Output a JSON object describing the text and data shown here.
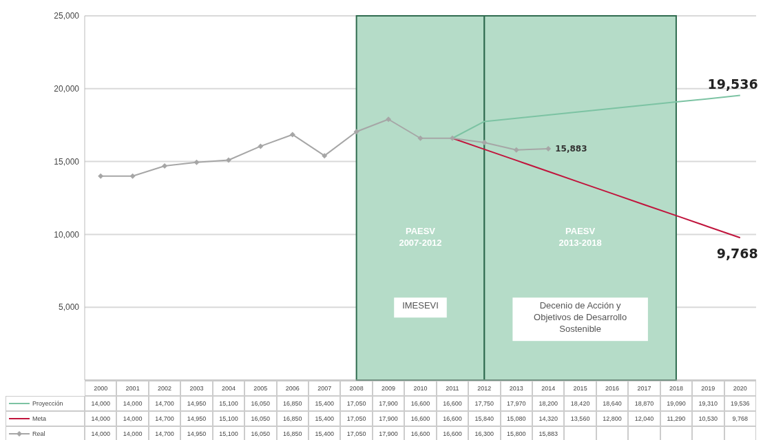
{
  "chart_data": {
    "type": "line",
    "categories": [
      "2000",
      "2001",
      "2002",
      "2003",
      "2004",
      "2005",
      "2006",
      "2007",
      "2008",
      "2009",
      "2010",
      "2011",
      "2012",
      "2013",
      "2014",
      "2015",
      "2016",
      "2017",
      "2018",
      "2019",
      "2020"
    ],
    "series": [
      {
        "name": "Proyección",
        "color": "#7cc3a3",
        "marker": "none",
        "values": [
          null,
          null,
          null,
          null,
          null,
          null,
          null,
          null,
          null,
          null,
          null,
          16600,
          17750,
          17970,
          18200,
          18420,
          18640,
          18870,
          19090,
          19310,
          19536
        ],
        "value_labels": [
          "14,000",
          "14,000",
          "14,700",
          "14,950",
          "15,100",
          "16,050",
          "16,850",
          "15,400",
          "17,050",
          "17,900",
          "16,600",
          "16,600",
          "17,750",
          "17,970",
          "18,200",
          "18,420",
          "18,640",
          "18,870",
          "19,090",
          "19,310",
          "19,536"
        ]
      },
      {
        "name": "Meta",
        "color": "#c0143c",
        "marker": "none",
        "values": [
          null,
          null,
          null,
          null,
          null,
          null,
          null,
          null,
          null,
          null,
          null,
          16600,
          15840,
          15080,
          14320,
          13560,
          12800,
          12040,
          11290,
          10530,
          9768
        ],
        "value_labels": [
          "14,000",
          "14,000",
          "14,700",
          "14,950",
          "15,100",
          "16,050",
          "16,850",
          "15,400",
          "17,050",
          "17,900",
          "16,600",
          "16,600",
          "15,840",
          "15,080",
          "14,320",
          "13,560",
          "12,800",
          "12,040",
          "11,290",
          "10,530",
          "9,768"
        ]
      },
      {
        "name": "Real",
        "color": "#a6a6a6",
        "marker": "diamond",
        "values": [
          14000,
          14000,
          14700,
          14950,
          15100,
          16050,
          16850,
          15400,
          17050,
          17900,
          16600,
          16600,
          16300,
          15800,
          15883,
          null,
          null,
          null,
          null,
          null,
          null
        ],
        "value_labels": [
          "14,000",
          "14,000",
          "14,700",
          "14,950",
          "15,100",
          "16,050",
          "16,850",
          "15,400",
          "17,050",
          "17,900",
          "16,600",
          "16,600",
          "16,300",
          "15,800",
          "15,883",
          null,
          null,
          null,
          null,
          null,
          null
        ]
      }
    ],
    "ylim": [
      0,
      25000
    ],
    "yticks": [
      {
        "value": 5000,
        "label": "5,000"
      },
      {
        "value": 10000,
        "label": "10,000"
      },
      {
        "value": 15000,
        "label": "15,000"
      },
      {
        "value": 20000,
        "label": "20,000"
      },
      {
        "value": 25000,
        "label": "25,000"
      }
    ],
    "grid": "y",
    "legend": "bottom",
    "bands": [
      {
        "axis": "x",
        "from": "2008",
        "to": "2012",
        "label": "PAESV 2007-2012",
        "color": "#b5dcc8"
      },
      {
        "axis": "x",
        "from": "2012",
        "to": "2018",
        "label": "PAESV 2013-2018",
        "color": "#b5dcc8"
      }
    ],
    "annotations": [
      "IMESEVI",
      "Decenio de Acción y Objetivos de Desarrollo Sostenible"
    ]
  }
}
